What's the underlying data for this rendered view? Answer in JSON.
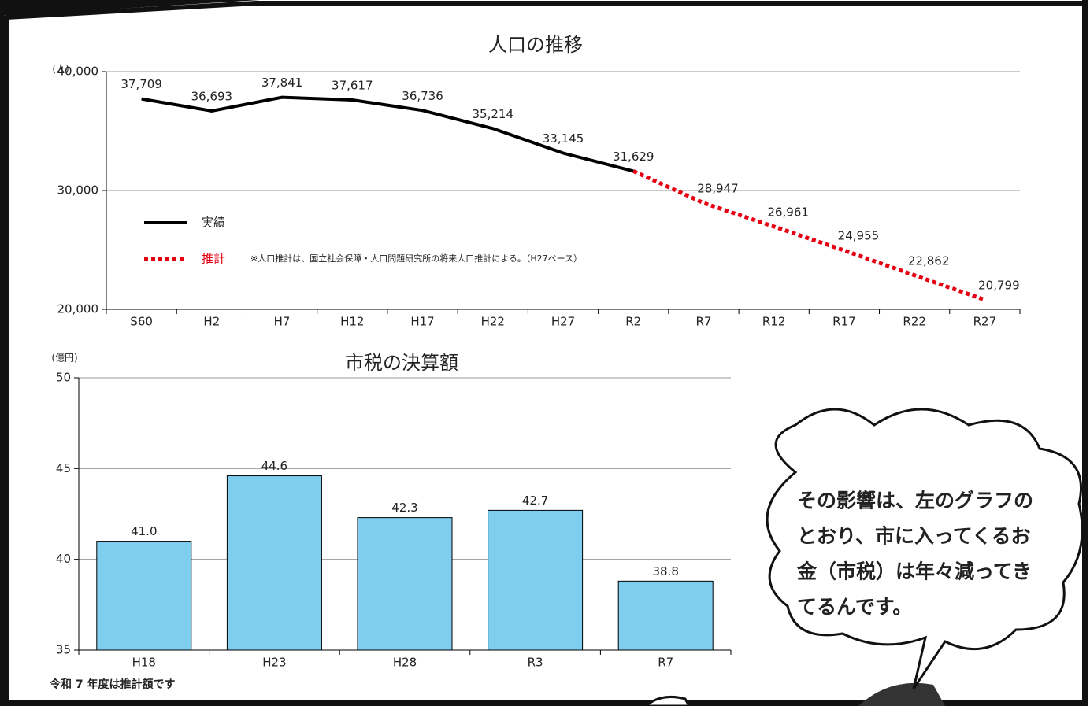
{
  "chart_data": [
    {
      "type": "line",
      "title": "人口の推移",
      "y_unit": "(人)",
      "categories": [
        "S60",
        "H2",
        "H7",
        "H12",
        "H17",
        "H22",
        "H27",
        "R2",
        "R7",
        "R12",
        "R17",
        "R22",
        "R27"
      ],
      "series": [
        {
          "name": "実績",
          "color": "#000000",
          "style": "solid",
          "values": [
            37709,
            36693,
            37841,
            37617,
            36736,
            35214,
            33145,
            31629,
            null,
            null,
            null,
            null,
            null
          ],
          "value_labels": [
            "37,709",
            "36,693",
            "37,841",
            "37,617",
            "36,736",
            "35,214",
            "33,145",
            "31,629",
            null,
            null,
            null,
            null,
            null
          ]
        },
        {
          "name": "推計",
          "color": "#e60012",
          "style": "dotted",
          "values": [
            null,
            null,
            null,
            null,
            null,
            null,
            null,
            31629,
            28947,
            26961,
            24955,
            22862,
            20799
          ],
          "value_labels": [
            null,
            null,
            null,
            null,
            null,
            null,
            null,
            null,
            "28,947",
            "26,961",
            "24,955",
            "22,862",
            "20,799"
          ]
        }
      ],
      "note": "※人口推計は、国立社会保障・人口問題研究所の将来人口推計による。（H27ベース）",
      "ylim": [
        20000,
        40000
      ],
      "yticks": [
        {
          "value": 20000,
          "label": "20,000"
        },
        {
          "value": 30000,
          "label": "30,000"
        },
        {
          "value": 40000,
          "label": "40,000"
        }
      ],
      "grid": true
    },
    {
      "type": "bar",
      "title": "市税の決算額",
      "y_unit": "(億円)",
      "categories": [
        "H18",
        "H23",
        "H28",
        "R3",
        "R7"
      ],
      "values": [
        41.0,
        44.6,
        42.3,
        42.7,
        38.8
      ],
      "value_labels": [
        "41.0",
        "44.6",
        "42.3",
        "42.7",
        "38.8"
      ],
      "color": "#7fcef0",
      "note": "令和 7 年度は推計額です",
      "ylim": [
        35,
        50
      ],
      "yticks": [
        35,
        40,
        45,
        50
      ],
      "grid": true
    }
  ],
  "speech_bubble": {
    "lines": [
      "その影響は、左のグラフの",
      "とおり、市に入ってくるお",
      "金（市税）は年々減ってき",
      "てるんです。"
    ]
  }
}
